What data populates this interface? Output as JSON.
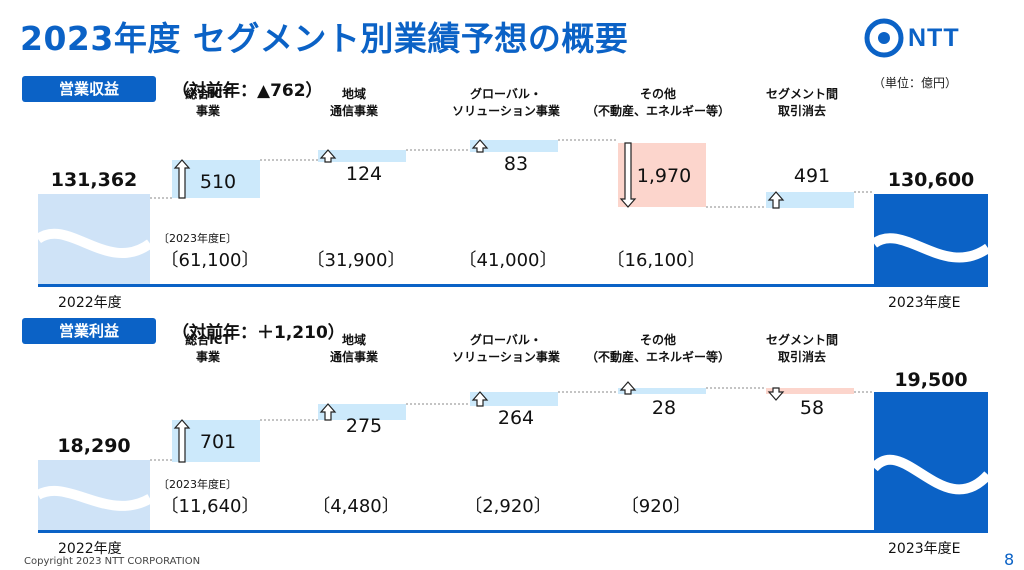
{
  "title": "2023年度 セグメント別業績予想の概要",
  "logo_text": "NTT",
  "unit": "（単位：億円）",
  "footer": "Copyright 2023 NTT CORPORATION",
  "page_number": "8",
  "colors": {
    "brand": "#0b62c6",
    "increase": "#cce9fb",
    "decrease": "#fcd5cc",
    "start": "#cfe3f7",
    "end": "#0b62c6"
  },
  "sections": [
    {
      "badge": "営業収益",
      "delta": "（対前年：▲762）",
      "forecast_note": "〔2023年度E〕",
      "start_label": "2022年度",
      "end_label": "2023年度E",
      "chart_data": {
        "type": "bar",
        "subtype": "waterfall",
        "start": {
          "label": "2022年度",
          "value": 131362,
          "display": "131,362"
        },
        "end": {
          "label": "2023年度E",
          "value": 130600,
          "display": "130,600"
        },
        "steps": [
          {
            "name": "総合ICT\n事業",
            "change": 510,
            "display": "510",
            "direction": "up",
            "forecast": "〔61,100〕"
          },
          {
            "name": "地域\n通信事業",
            "change": 124,
            "display": "124",
            "direction": "up",
            "forecast": "〔31,900〕"
          },
          {
            "name": "グローバル・\nソリューション事業",
            "change": 83,
            "display": "83",
            "direction": "up",
            "forecast": "〔41,000〕"
          },
          {
            "name": "その他\n（不動産、エネルギー等）",
            "change": -1970,
            "display": "1,970",
            "direction": "down",
            "forecast": "〔16,100〕"
          },
          {
            "name": "セグメント間\n取引消去",
            "change": 491,
            "display": "491",
            "direction": "up",
            "forecast": ""
          }
        ]
      }
    },
    {
      "badge": "営業利益",
      "delta": "（対前年：＋1,210）",
      "forecast_note": "〔2023年度E〕",
      "start_label": "2022年度",
      "end_label": "2023年度E",
      "chart_data": {
        "type": "bar",
        "subtype": "waterfall",
        "start": {
          "label": "2022年度",
          "value": 18290,
          "display": "18,290"
        },
        "end": {
          "label": "2023年度E",
          "value": 19500,
          "display": "19,500"
        },
        "steps": [
          {
            "name": "総合ICT\n事業",
            "change": 701,
            "display": "701",
            "direction": "up",
            "forecast": "〔11,640〕"
          },
          {
            "name": "地域\n通信事業",
            "change": 275,
            "display": "275",
            "direction": "up",
            "forecast": "〔4,480〕"
          },
          {
            "name": "グローバル・\nソリューション事業",
            "change": 264,
            "display": "264",
            "direction": "up",
            "forecast": "〔2,920〕"
          },
          {
            "name": "その他\n（不動産、エネルギー等）",
            "change": 28,
            "display": "28",
            "direction": "up",
            "forecast": "〔920〕"
          },
          {
            "name": "セグメント間\n取引消去",
            "change": -58,
            "display": "58",
            "direction": "down",
            "forecast": ""
          }
        ]
      }
    }
  ]
}
